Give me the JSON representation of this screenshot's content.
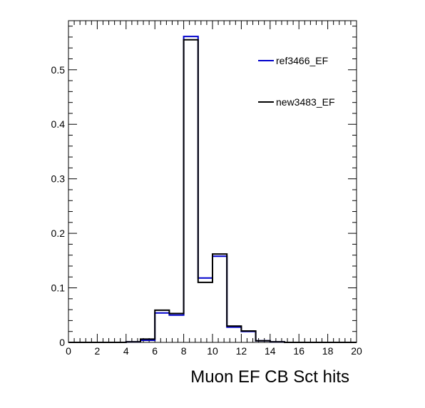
{
  "chart_data": {
    "type": "histogram",
    "xlabel": "Muon EF CB Sct hits",
    "ylabel": "",
    "title": "",
    "xlim": [
      0,
      20
    ],
    "ylim": [
      0,
      0.59
    ],
    "x_ticks": [
      0,
      2,
      4,
      6,
      8,
      10,
      12,
      14,
      16,
      18,
      20
    ],
    "y_ticks": [
      0,
      0.1,
      0.2,
      0.3,
      0.4,
      0.5
    ],
    "y_tick_labels": [
      "0",
      "0.1",
      "0.2",
      "0.3",
      "0.4",
      "0.5"
    ],
    "bin_edges": [
      0,
      1,
      2,
      3,
      4,
      5,
      6,
      7,
      8,
      9,
      10,
      11,
      12,
      13,
      14,
      15,
      16,
      17,
      18,
      19,
      20
    ],
    "grid": false,
    "legend_position": "top-right",
    "series": [
      {
        "name": "ref3466_EF",
        "color": "#0000cc",
        "values": [
          0,
          0,
          0,
          0,
          0.001,
          0.004,
          0.054,
          0.05,
          0.561,
          0.118,
          0.158,
          0.028,
          0.02,
          0.003,
          0.001,
          0,
          0,
          0,
          0,
          0
        ]
      },
      {
        "name": "new3483_EF",
        "color": "#000000",
        "values": [
          0,
          0,
          0,
          0,
          0.001,
          0.006,
          0.059,
          0.053,
          0.555,
          0.11,
          0.162,
          0.03,
          0.021,
          0.003,
          0.001,
          0,
          0,
          0,
          0,
          0
        ]
      }
    ]
  }
}
